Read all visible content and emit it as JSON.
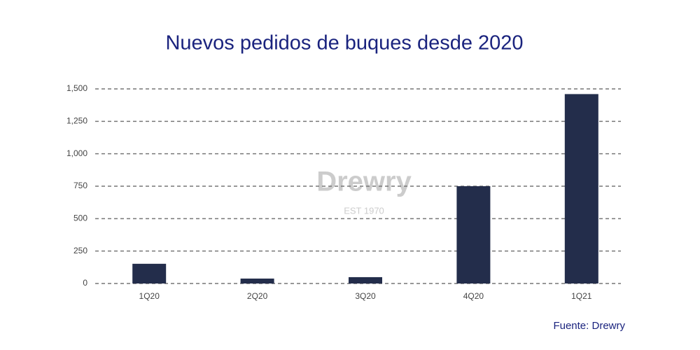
{
  "chart_data": {
    "type": "bar",
    "title": "Nuevos pedidos de buques desde 2020",
    "categories": [
      "1Q20",
      "2Q20",
      "3Q20",
      "4Q20",
      "1Q21"
    ],
    "values": [
      152,
      38,
      49,
      750,
      1460
    ],
    "color": "#232d4b",
    "ylim": [
      0,
      1500
    ],
    "yticks": [
      0,
      250,
      500,
      750,
      {
        "value": 1000,
        "label": "1,000"
      },
      {
        "value": 1250,
        "label": "1,250"
      },
      {
        "value": 1500,
        "label": "1,500"
      }
    ],
    "grid": true,
    "watermark": {
      "name": "Drewry",
      "subtitle": "EST 1970"
    },
    "source": "Fuente:  Drewry"
  }
}
